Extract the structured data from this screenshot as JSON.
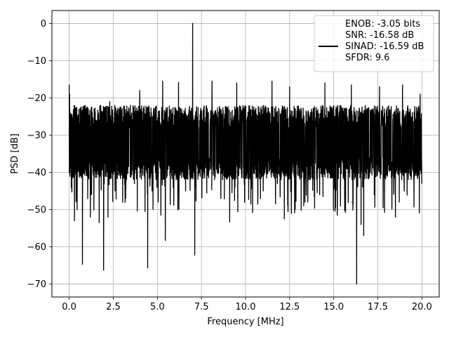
{
  "chart_data": {
    "type": "line",
    "xlabel": "Frequency [MHz]",
    "ylabel": "PSD [dB]",
    "xlim": [
      -0.98,
      20.98
    ],
    "ylim": [
      -73.5,
      3.5
    ],
    "xticks": [
      0.0,
      2.5,
      5.0,
      7.5,
      10.0,
      12.5,
      15.0,
      17.5,
      20.0
    ],
    "xtick_labels": [
      "0.0",
      "2.5",
      "5.0",
      "7.5",
      "10.0",
      "12.5",
      "15.0",
      "17.5",
      "20.0"
    ],
    "yticks": [
      0,
      -10,
      -20,
      -30,
      -40,
      -50,
      -60,
      -70
    ],
    "ytick_labels": [
      "0",
      "−10",
      "−20",
      "−30",
      "−40",
      "−50",
      "−60",
      "−70"
    ],
    "grid": true,
    "legend_position": "top-right",
    "line_color": "#000000",
    "series": [
      {
        "legend_lines": [
          "ENOB: -3.05 bits",
          "SNR: -16.58 dB",
          "SINAD: -16.59 dB",
          "SFDR: 9.6"
        ],
        "noise_band": {
          "x_start": 0.0,
          "x_end": 20.0,
          "upper_approx": -20,
          "lower_approx": -40
        },
        "peak": {
          "x": 7.0,
          "y": 0.0
        },
        "points": [
          {
            "x": 0.0,
            "y": -16.5
          },
          {
            "x": 0.05,
            "y": -38
          },
          {
            "x": 0.12,
            "y": -44
          },
          {
            "x": 0.3,
            "y": -53
          },
          {
            "x": 0.45,
            "y": -50
          },
          {
            "x": 0.75,
            "y": -64.7
          },
          {
            "x": 1.05,
            "y": -47
          },
          {
            "x": 1.2,
            "y": -52
          },
          {
            "x": 1.7,
            "y": -53.5
          },
          {
            "x": 1.95,
            "y": -66.3
          },
          {
            "x": 2.2,
            "y": -52
          },
          {
            "x": 2.6,
            "y": -45
          },
          {
            "x": 3.2,
            "y": -47
          },
          {
            "x": 3.7,
            "y": -43
          },
          {
            "x": 4.3,
            "y": -50.5
          },
          {
            "x": 4.45,
            "y": -65.7
          },
          {
            "x": 4.7,
            "y": -45
          },
          {
            "x": 5.2,
            "y": -51.5
          },
          {
            "x": 5.45,
            "y": -58.3
          },
          {
            "x": 5.9,
            "y": -44
          },
          {
            "x": 6.6,
            "y": -45
          },
          {
            "x": 7.0,
            "y": 0.0
          },
          {
            "x": 7.12,
            "y": -62.2
          },
          {
            "x": 7.8,
            "y": -45.5
          },
          {
            "x": 8.6,
            "y": -47
          },
          {
            "x": 9.1,
            "y": -53.3
          },
          {
            "x": 9.4,
            "y": -44
          },
          {
            "x": 10.4,
            "y": -50.8
          },
          {
            "x": 11.0,
            "y": -45
          },
          {
            "x": 11.7,
            "y": -48.5
          },
          {
            "x": 12.2,
            "y": -52.5
          },
          {
            "x": 12.6,
            "y": -51
          },
          {
            "x": 13.3,
            "y": -49
          },
          {
            "x": 14.2,
            "y": -46
          },
          {
            "x": 15.2,
            "y": -51.5
          },
          {
            "x": 16.0,
            "y": -48
          },
          {
            "x": 16.3,
            "y": -70
          },
          {
            "x": 16.55,
            "y": -54
          },
          {
            "x": 16.7,
            "y": -57
          },
          {
            "x": 17.3,
            "y": -46
          },
          {
            "x": 17.8,
            "y": -49.5
          },
          {
            "x": 18.5,
            "y": -52
          },
          {
            "x": 19.0,
            "y": -45
          },
          {
            "x": 19.55,
            "y": -49.3
          },
          {
            "x": 20.0,
            "y": -43
          },
          {
            "x": 0.02,
            "y": -19
          },
          {
            "x": 0.9,
            "y": -22
          },
          {
            "x": 2.3,
            "y": -21
          },
          {
            "x": 4.0,
            "y": -18
          },
          {
            "x": 5.3,
            "y": -15.5
          },
          {
            "x": 6.2,
            "y": -15.8
          },
          {
            "x": 8.1,
            "y": -15.5
          },
          {
            "x": 9.5,
            "y": -16
          },
          {
            "x": 11.5,
            "y": -15.5
          },
          {
            "x": 12.5,
            "y": -17
          },
          {
            "x": 14.5,
            "y": -16
          },
          {
            "x": 16.0,
            "y": -16.5
          },
          {
            "x": 17.6,
            "y": -17
          },
          {
            "x": 18.9,
            "y": -16.5
          },
          {
            "x": 19.9,
            "y": -19
          }
        ]
      }
    ]
  }
}
